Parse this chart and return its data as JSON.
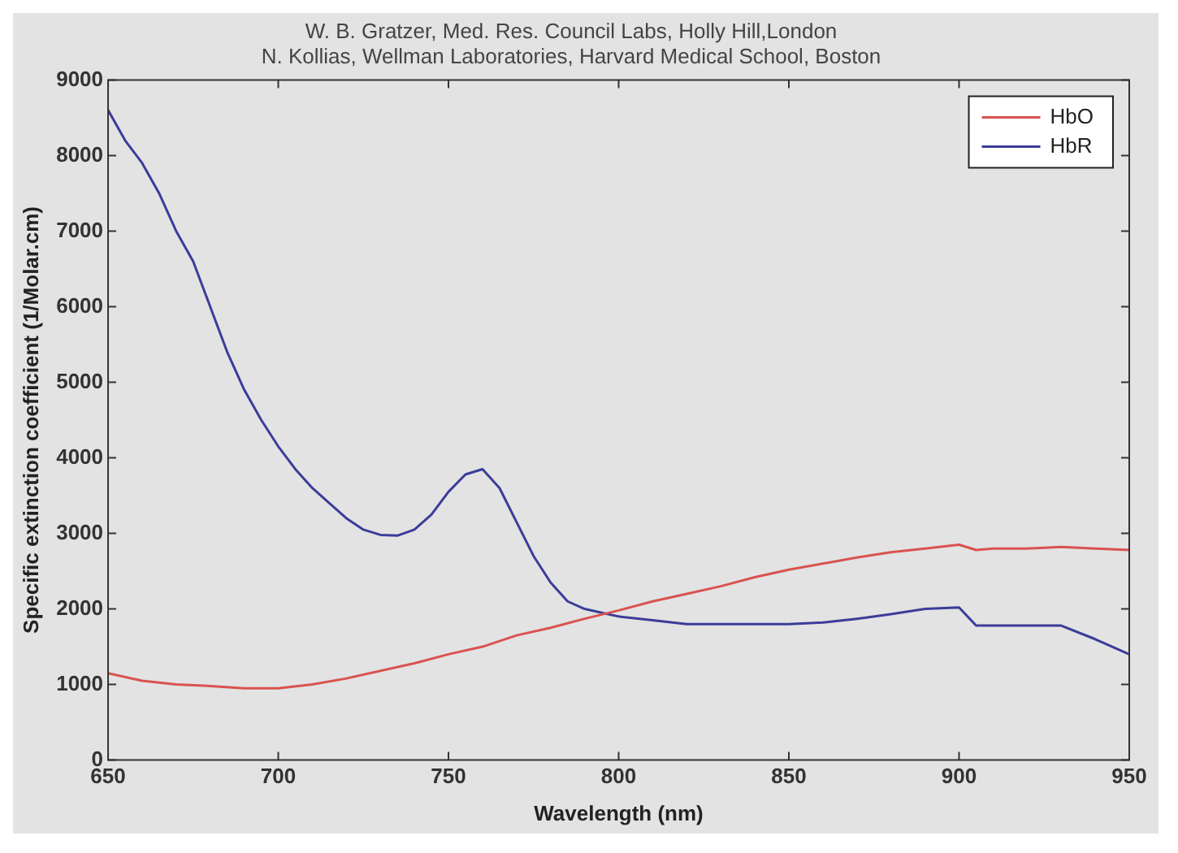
{
  "chart_data": {
    "type": "line",
    "title": "W. B. Gratzer, Med. Res. Council Labs, Holly Hill,London",
    "subtitle": "N. Kollias, Wellman Laboratories, Harvard Medical School, Boston",
    "xlabel": "Wavelength (nm)",
    "ylabel": "Specific extinction coefficient (1/Molar.cm)",
    "series": [
      {
        "name": "HbO",
        "color": "#d9534f",
        "x": [
          650,
          660,
          670,
          680,
          690,
          700,
          710,
          720,
          730,
          740,
          750,
          760,
          770,
          780,
          790,
          800,
          810,
          820,
          830,
          840,
          850,
          860,
          870,
          880,
          890,
          900,
          905,
          910,
          920,
          930,
          940,
          950
        ],
        "values": [
          1150,
          1050,
          1000,
          980,
          950,
          950,
          1000,
          1080,
          1180,
          1280,
          1400,
          1500,
          1650,
          1750,
          1870,
          1980,
          2100,
          2200,
          2300,
          2420,
          2520,
          2600,
          2680,
          2750,
          2800,
          2850,
          2780,
          2800,
          2800,
          2820,
          2800,
          2780
        ]
      },
      {
        "name": "HbR",
        "color": "#3c3c9a",
        "x": [
          650,
          655,
          660,
          665,
          670,
          675,
          680,
          685,
          690,
          695,
          700,
          705,
          710,
          715,
          720,
          725,
          730,
          735,
          740,
          745,
          750,
          755,
          760,
          765,
          770,
          775,
          780,
          785,
          790,
          795,
          800,
          810,
          820,
          830,
          840,
          850,
          860,
          870,
          880,
          890,
          900,
          905,
          910,
          920,
          930,
          940,
          950
        ],
        "values": [
          8600,
          8200,
          7900,
          7500,
          7000,
          6600,
          6000,
          5400,
          4900,
          4500,
          4150,
          3850,
          3600,
          3400,
          3200,
          3050,
          2980,
          2970,
          3050,
          3250,
          3550,
          3780,
          3850,
          3600,
          3150,
          2700,
          2350,
          2100,
          2000,
          1950,
          1900,
          1850,
          1800,
          1800,
          1800,
          1800,
          1820,
          1870,
          1930,
          2000,
          2020,
          1780,
          1780,
          1780,
          1780,
          1600,
          1400
        ]
      }
    ],
    "xlim": [
      650,
      950
    ],
    "xticks": [
      650,
      700,
      750,
      800,
      850,
      900,
      950
    ],
    "ylim": [
      0,
      9000
    ],
    "yticks": [
      0,
      1000,
      2000,
      3000,
      4000,
      5000,
      6000,
      7000,
      8000,
      9000
    ],
    "grid": false,
    "legend": "top right",
    "marker": "none",
    "line_style": "solid"
  }
}
